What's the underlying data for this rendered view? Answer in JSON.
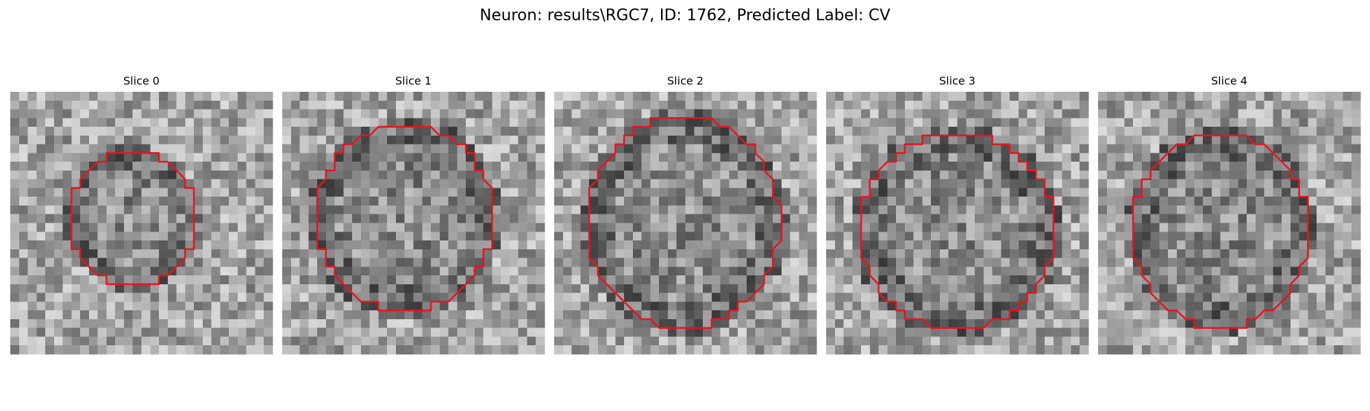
{
  "title": "Neuron: results\\RGC7, ID: 1762, Predicted Label: CV",
  "panels": [
    {
      "title": "Slice 0"
    },
    {
      "title": "Slice 1"
    },
    {
      "title": "Slice 2"
    },
    {
      "title": "Slice 3"
    },
    {
      "title": "Slice 4"
    }
  ]
}
